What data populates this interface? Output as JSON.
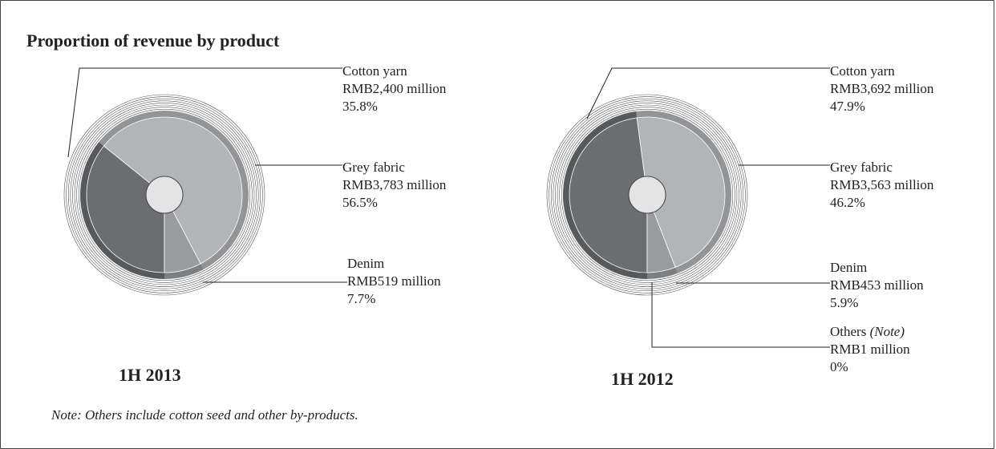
{
  "title": "Proportion of revenue by product",
  "note": "Note: Others include cotton seed and other by-products.",
  "chart_data": [
    {
      "type": "pie",
      "period": "1H 2013",
      "slices": [
        {
          "name": "Cotton yarn",
          "amount": "RMB2,400 million",
          "percent_label": "35.8%",
          "value": 35.8,
          "color": "#6b6d70"
        },
        {
          "name": "Grey fabric",
          "amount": "RMB3,783 million",
          "percent_label": "56.5%",
          "value": 56.5,
          "color": "#b3b4b7"
        },
        {
          "name": "Denim",
          "amount": "RMB519 million",
          "percent_label": "7.7%",
          "value": 7.7,
          "color": "#9a9b9e"
        }
      ]
    },
    {
      "type": "pie",
      "period": "1H 2012",
      "slices": [
        {
          "name": "Cotton yarn",
          "amount": "RMB3,692 million",
          "percent_label": "47.9%",
          "value": 47.9,
          "color": "#6b6d70"
        },
        {
          "name": "Grey fabric",
          "amount": "RMB3,563 million",
          "percent_label": "46.2%",
          "value": 46.2,
          "color": "#b3b4b7"
        },
        {
          "name": "Denim",
          "amount": "RMB453 million",
          "percent_label": "5.9%",
          "value": 5.9,
          "color": "#9a9b9e"
        },
        {
          "name": "Others",
          "name_note": "(Note)",
          "amount": "RMB1 million",
          "percent_label": "0%",
          "value": 0.0,
          "color": "#6b6d70"
        }
      ]
    }
  ]
}
